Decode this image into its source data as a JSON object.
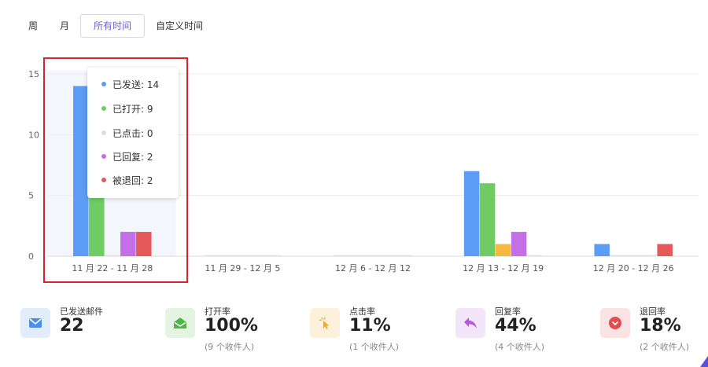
{
  "tabs": [
    {
      "label": "周",
      "active": false
    },
    {
      "label": "月",
      "active": false
    },
    {
      "label": "所有时间",
      "active": true
    },
    {
      "label": "自定义时间",
      "active": false
    }
  ],
  "colors": {
    "sent": "#5b9cf6",
    "opened": "#6fcb63",
    "clicked": "#f5b942",
    "replied": "#c46ee8",
    "bounced": "#e5595b",
    "accent": "#6b63d9",
    "highlight": "#d9232f"
  },
  "tooltip": {
    "items": [
      {
        "label": "已发送: 14",
        "color": "#5b9cf6"
      },
      {
        "label": "已打开: 9",
        "color": "#6fcb63"
      },
      {
        "label": "已点击: 0",
        "color": "#dddddd"
      },
      {
        "label": "已回复: 2",
        "color": "#c46ee8"
      },
      {
        "label": "被退回: 2",
        "color": "#e5595b"
      }
    ]
  },
  "chart_data": {
    "type": "bar",
    "categories": [
      "11 月 22 - 11 月 28",
      "11 月 29 - 12 月 5",
      "12 月 6 - 12 月 12",
      "12 月 13 - 12 月 19",
      "12 月 20 - 12 月 26"
    ],
    "series": [
      {
        "name": "已发送",
        "color": "#5b9cf6",
        "values": [
          14,
          0,
          0,
          7,
          1
        ]
      },
      {
        "name": "已打开",
        "color": "#6fcb63",
        "values": [
          9,
          0,
          0,
          6,
          0
        ]
      },
      {
        "name": "已点击",
        "color": "#f5b942",
        "values": [
          0,
          0,
          0,
          1,
          0
        ]
      },
      {
        "name": "已回复",
        "color": "#c46ee8",
        "values": [
          2,
          0,
          0,
          2,
          0
        ]
      },
      {
        "name": "被退回",
        "color": "#e5595b",
        "values": [
          2,
          0,
          0,
          0,
          1
        ]
      }
    ],
    "yticks": [
      "0",
      "5",
      "10",
      "15"
    ],
    "ylim": [
      0,
      16
    ],
    "grid": true,
    "highlighted_category": 0
  },
  "stats": [
    {
      "label": "已发送邮件",
      "value": "22",
      "sub": "",
      "icon": "mail-icon",
      "bg": "#e2edfc",
      "fg": "#4a8ef0"
    },
    {
      "label": "打开率",
      "value": "100%",
      "sub": "(9 个收件人)",
      "icon": "open-mail-icon",
      "bg": "#e3f5e1",
      "fg": "#4fb54a"
    },
    {
      "label": "点击率",
      "value": "11%",
      "sub": "(1 个收件人)",
      "icon": "cursor-click-icon",
      "bg": "#fdf1dc",
      "fg": "#f0a92a"
    },
    {
      "label": "回复率",
      "value": "44%",
      "sub": "(4 个收件人)",
      "icon": "reply-icon",
      "bg": "#f4e6fa",
      "fg": "#b45ad9"
    },
    {
      "label": "退回率",
      "value": "18%",
      "sub": "(2 个收件人)",
      "icon": "bounce-icon",
      "bg": "#fbe3e3",
      "fg": "#e04d50"
    }
  ]
}
